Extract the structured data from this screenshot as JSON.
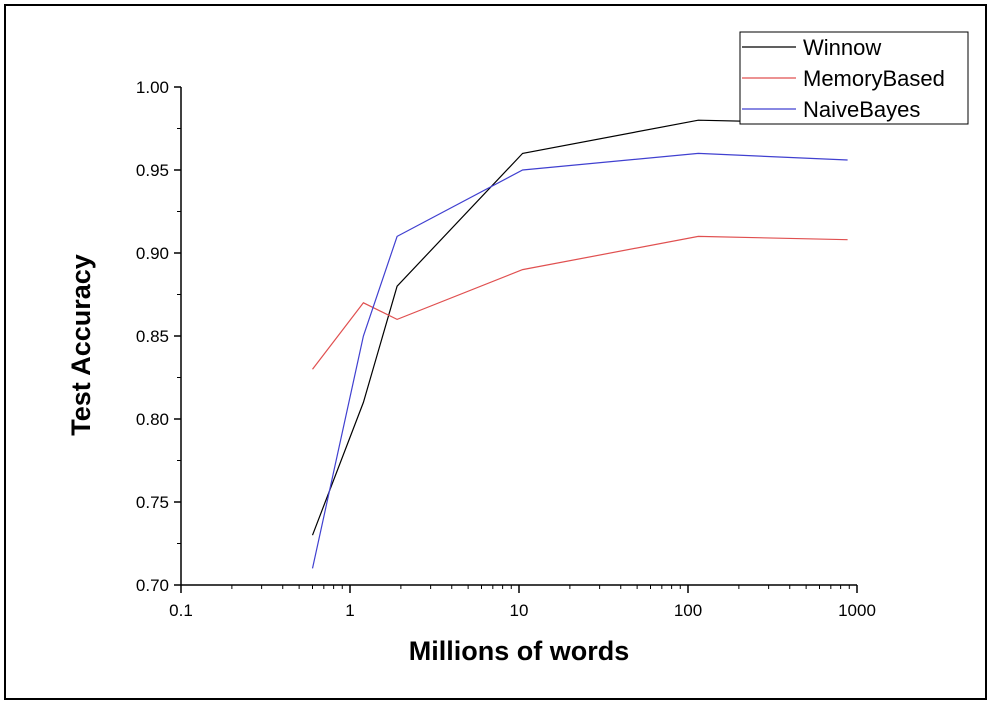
{
  "chart_data": {
    "type": "line",
    "title": "",
    "xlabel": "Millions of words",
    "ylabel": "Test Accuracy",
    "xscale": "log",
    "xlim": [
      0.1,
      1000
    ],
    "ylim": [
      0.7,
      1.0
    ],
    "x_ticks": [
      "0.1",
      "1",
      "10",
      "100",
      "1000"
    ],
    "y_ticks": [
      "0.70",
      "0.75",
      "0.80",
      "0.85",
      "0.90",
      "0.95",
      "1.00"
    ],
    "grid": false,
    "legend_position": "top-right",
    "series": [
      {
        "name": "Winnow",
        "color": "#000000",
        "x": [
          0.6,
          1.2,
          1.9,
          10.5,
          115,
          880
        ],
        "y": [
          0.73,
          0.81,
          0.88,
          0.96,
          0.98,
          0.978
        ]
      },
      {
        "name": "MemoryBased",
        "color": "#e05050",
        "x": [
          0.6,
          1.2,
          1.9,
          10.5,
          115,
          880
        ],
        "y": [
          0.83,
          0.87,
          0.86,
          0.89,
          0.91,
          0.908
        ]
      },
      {
        "name": "NaiveBayes",
        "color": "#4040d0",
        "x": [
          0.6,
          1.2,
          1.9,
          10.5,
          115,
          880
        ],
        "y": [
          0.71,
          0.85,
          0.91,
          0.95,
          0.96,
          0.956
        ]
      }
    ]
  }
}
